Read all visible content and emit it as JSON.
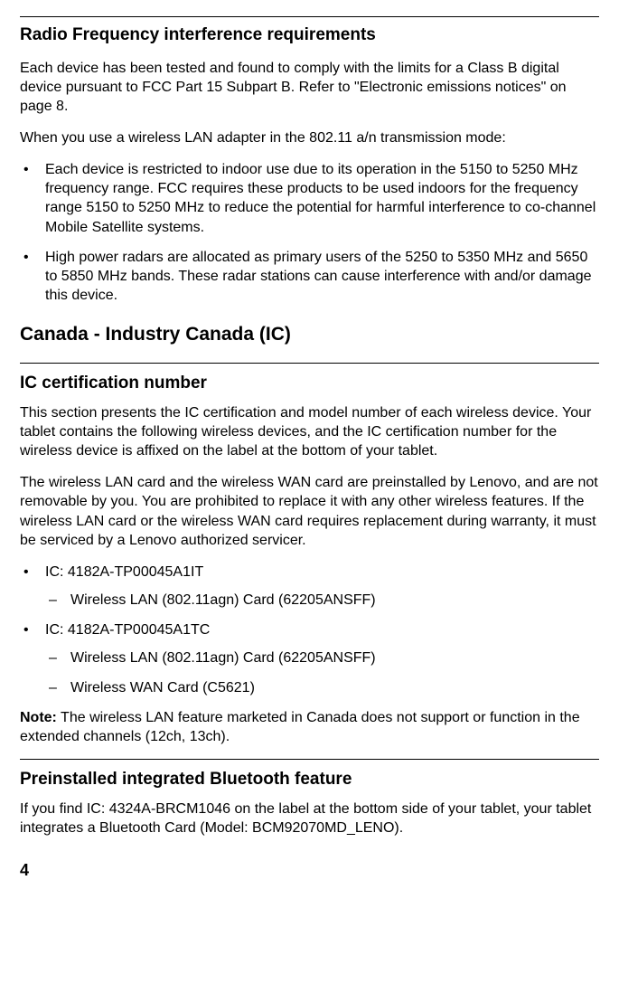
{
  "section1": {
    "heading": "Radio Frequency interference requirements",
    "p1": "Each device has been tested and found to comply with the limits for a Class B digital device pursuant to FCC Part 15 Subpart B. Refer to \"Electronic emissions notices\" on page 8.",
    "p2": "When you use a wireless LAN adapter in the 802.11 a/n transmission mode:",
    "bullets": [
      "Each device is restricted to indoor use due to its operation in the 5150 to 5250 MHz frequency range. FCC requires these products to be used indoors for the frequency range 5150 to 5250 MHz to reduce the potential for harmful interference to co-channel Mobile Satellite systems.",
      "High power radars are allocated as primary users of the 5250 to 5350 MHz and 5650 to 5850 MHz bands. These radar stations can cause interference with and/or damage this device."
    ]
  },
  "section2": {
    "heading": "Canada - Industry Canada (IC)"
  },
  "section3": {
    "heading": "IC certification number",
    "p1": "This section presents the IC certification and model number of each wireless device. Your tablet contains the following wireless devices, and the IC certification number for the wireless device is affixed on the label at the bottom of your tablet.",
    "p2": "The wireless LAN card and the wireless WAN card are preinstalled by Lenovo, and are not removable by you. You are prohibited to replace it with any other wireless features. If the wireless LAN card or the wireless WAN card requires replacement during warranty, it must be serviced by a Lenovo authorized servicer.",
    "item1": {
      "label": "IC: 4182A-TP00045A1IT",
      "sub1": "Wireless LAN (802.11agn) Card (62205ANSFF)"
    },
    "item2": {
      "label": "IC: 4182A-TP00045A1TC",
      "sub1": "Wireless LAN (802.11agn) Card (62205ANSFF)",
      "sub2": "Wireless WAN Card (C5621)"
    },
    "note_label": "Note:",
    "note_text": " The wireless LAN feature marketed in Canada does not support or function in the extended channels (12ch, 13ch)."
  },
  "section4": {
    "heading": "Preinstalled integrated Bluetooth feature",
    "p1": "If you find IC: 4324A-BRCM1046 on the label at the bottom side of your tablet, your tablet integrates a Bluetooth Card (Model: BCM92070MD_LENO)."
  },
  "page_number": "4"
}
